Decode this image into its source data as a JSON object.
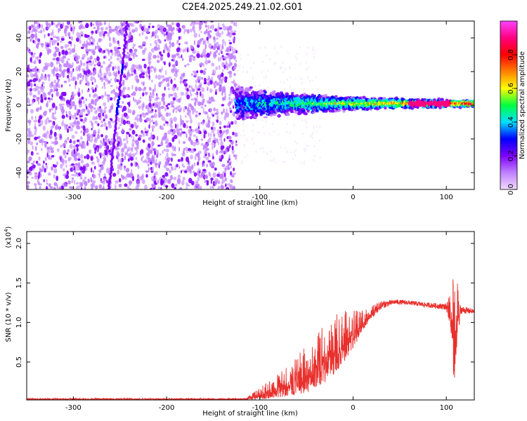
{
  "title": "C2E4.2025.249.21.02.G01",
  "chart_data": [
    {
      "type": "heatmap",
      "xlabel": "Height of straight line (km)",
      "ylabel": "Frequency (Hz)",
      "xlim": [
        -350,
        130
      ],
      "ylim": [
        -50,
        50
      ],
      "xticks": [
        -300,
        -200,
        -100,
        0,
        100
      ],
      "yticks": [
        -40,
        -20,
        0,
        20,
        40
      ],
      "colorbar": {
        "label": "Normalized spectral amplitude",
        "range": [
          0.0,
          1.0
        ],
        "ticks": [
          "0.0",
          "0.2",
          "0.4",
          "0.6",
          "0.8"
        ],
        "tick_values": [
          0.0,
          0.2,
          0.4,
          0.6,
          0.8
        ],
        "colormap": [
          "#f2dcff",
          "#c080ff",
          "#8000ff",
          "#0000ff",
          "#00e0ff",
          "#00ff40",
          "#ffff00",
          "#ff8000",
          "#ff0000",
          "#ff0080",
          "#ff40ff"
        ]
      },
      "features": {
        "noise_region_x": [
          -350,
          -125
        ],
        "streak_line": {
          "x_at_ymin": -262,
          "x_at_ymax": -242
        },
        "carrier_start_x": -125,
        "carrier_center_hz": 1
      }
    },
    {
      "type": "line",
      "xlabel": "Height of straight line (km)",
      "ylabel": "SNR (10 * v/v)",
      "yscale_label": "(x10",
      "yscale_exp": "4",
      "xlim": [
        -350,
        130
      ],
      "ylim": [
        0.02,
        2.15
      ],
      "xticks": [
        -300,
        -200,
        -100,
        0,
        100
      ],
      "yticks": [
        0.5,
        1.0,
        1.5,
        2.0
      ],
      "ytick_labels": [
        "0.5",
        "1.0",
        "1.5",
        "2.0"
      ],
      "color": "#e8302c",
      "series": [
        {
          "x": [
            -350,
            -300,
            -250,
            -200,
            -150,
            -115,
            -100,
            -80,
            -60,
            -40,
            -20,
            0,
            15,
            30,
            45,
            60,
            80,
            100,
            105,
            108,
            110,
            115,
            130
          ],
          "y": [
            0.03,
            0.03,
            0.03,
            0.03,
            0.03,
            0.03,
            0.1,
            0.2,
            0.33,
            0.5,
            0.72,
            0.92,
            1.08,
            1.22,
            1.26,
            1.25,
            1.22,
            1.2,
            1.15,
            1.0,
            1.1,
            1.16,
            1.14
          ],
          "noise_amplitude": [
            0.01,
            0.01,
            0.01,
            0.01,
            0.01,
            0.01,
            0.08,
            0.15,
            0.25,
            0.35,
            0.4,
            0.25,
            0.1,
            0.05,
            0.03,
            0.03,
            0.03,
            0.04,
            0.25,
            0.9,
            0.6,
            0.05,
            0.03
          ]
        }
      ]
    }
  ]
}
